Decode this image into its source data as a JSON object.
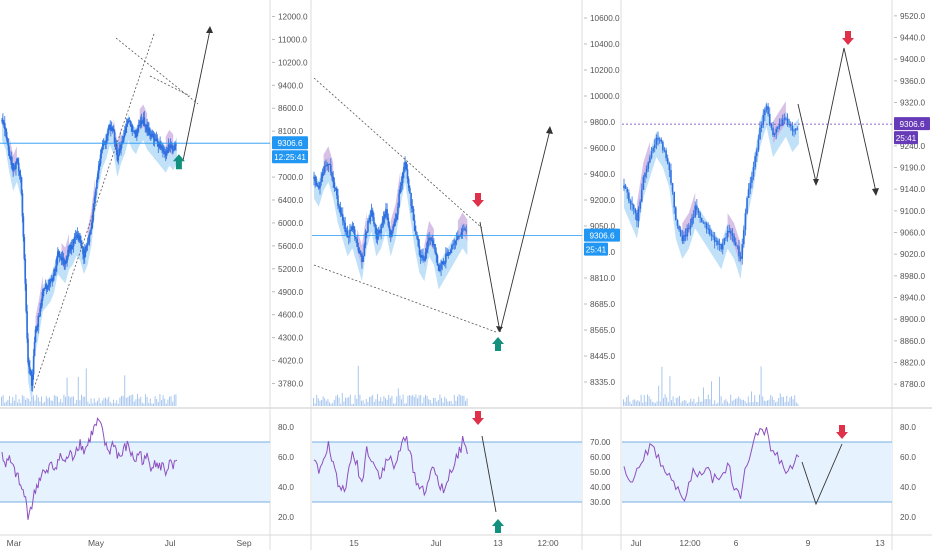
{
  "colors": {
    "candle": "#2e6fe0",
    "cloud_blue": "#8ec8f2",
    "cloud_purple": "#c7a6dd",
    "rsi_line": "#8e4fbf",
    "rsi_band": "#e6f2fd",
    "rsi_band_line": "#4a98d6",
    "price_line": "#2196f3",
    "arrow_down": "#e0314a",
    "arrow_up": "#14907e",
    "tag_blue": "#2196f3",
    "tag_purple": "#673ab7",
    "projection": "#333333",
    "volume": "#a9c7ef",
    "axis_text": "#555555"
  },
  "chart_data": [
    {
      "panel": "left",
      "type": "candlestick",
      "x_ticks": [
        "Mar",
        "May",
        "Jul",
        "Sep"
      ],
      "y_ticks": [
        "12000.0",
        "11000.0",
        "10200.0",
        "9400.0",
        "8600.0",
        "8100.0",
        "7600.0",
        "7000.0",
        "6400.0",
        "6000.0",
        "5600.0",
        "5200.0",
        "4900.0",
        "4600.0",
        "4300.0",
        "4020.0",
        "3780.0"
      ],
      "last_price_label": "9306.6",
      "countdown_label": "12:25:41",
      "closes": [
        9800,
        9600,
        9100,
        8700,
        8900,
        8600,
        6800,
        4600,
        4100,
        5200,
        5600,
        6100,
        6200,
        6300,
        6500,
        6900,
        6800,
        6700,
        7000,
        7100,
        7300,
        7200,
        6900,
        7100,
        7500,
        8200,
        8800,
        9200,
        9400,
        9700,
        9500,
        9000,
        9300,
        9500,
        9800,
        9600,
        9500,
        9700,
        9800,
        9600,
        9500,
        9400,
        9300,
        9200,
        9100,
        9250,
        9150,
        9306
      ],
      "rsi": [
        62,
        55,
        58,
        52,
        48,
        40,
        35,
        22,
        28,
        38,
        45,
        50,
        48,
        55,
        52,
        58,
        60,
        56,
        62,
        60,
        66,
        70,
        64,
        68,
        75,
        80,
        84,
        76,
        66,
        64,
        70,
        62,
        60,
        66,
        68,
        60,
        58,
        64,
        56,
        60,
        54,
        58,
        52,
        55,
        50,
        56,
        52,
        58
      ],
      "rsi_ticks": [
        "80.0",
        "60.0",
        "40.0",
        "20.0"
      ],
      "rsi_band": [
        70,
        30
      ],
      "annotations": [
        "support trendline",
        "falling wedge",
        "green up arrow",
        "projected breakout upward"
      ]
    },
    {
      "panel": "middle",
      "type": "candlestick",
      "x_ticks": [
        "15",
        "Jul",
        "13",
        "12:00"
      ],
      "y_ticks": [
        "10600.0",
        "10400.0",
        "10200.0",
        "10000.0",
        "9800.0",
        "9600.0",
        "9400.0",
        "9200.0",
        "9050.0",
        "8930.0",
        "8810.0",
        "8685.0",
        "8565.0",
        "8445.0",
        "8335.0"
      ],
      "last_price_label": "9306.6",
      "countdown_label": "25:41",
      "closes": [
        9650,
        9600,
        9700,
        9750,
        9650,
        9500,
        9400,
        9300,
        9350,
        9250,
        9150,
        9350,
        9450,
        9300,
        9350,
        9450,
        9300,
        9400,
        9600,
        9750,
        9550,
        9350,
        9200,
        9150,
        9300,
        9250,
        9100,
        9150,
        9200,
        9250,
        9300,
        9350,
        9306
      ],
      "rsi": [
        58,
        52,
        62,
        68,
        55,
        42,
        38,
        45,
        62,
        55,
        42,
        66,
        60,
        52,
        48,
        56,
        60,
        52,
        66,
        74,
        62,
        48,
        40,
        38,
        46,
        52,
        44,
        36,
        48,
        54,
        60,
        70,
        62
      ],
      "rsi_ticks": [
        "70.00",
        "60.00",
        "50.00",
        "40.00",
        "30.00"
      ],
      "rsi_band": [
        70,
        30
      ],
      "annotations": [
        "descending resistance",
        "descending support",
        "red down arrow",
        "green up arrow",
        "projected drop then rally"
      ]
    },
    {
      "panel": "right",
      "type": "candlestick",
      "x_ticks": [
        "Jul",
        "12:00",
        "6",
        "9",
        "13"
      ],
      "y_ticks": [
        "9520.0",
        "9440.0",
        "9400.0",
        "9360.0",
        "9320.0",
        "9280.0",
        "9240.0",
        "9190.0",
        "9140.0",
        "9100.0",
        "9060.0",
        "9020.0",
        "8980.0",
        "8940.0",
        "8900.0",
        "8860.0",
        "8820.0",
        "8780.0"
      ],
      "last_price_label": "9306.6",
      "countdown_label": "25:41",
      "closes": [
        9180,
        9150,
        9120,
        9200,
        9240,
        9280,
        9260,
        9220,
        9120,
        9080,
        9100,
        9140,
        9120,
        9100,
        9080,
        9060,
        9100,
        9080,
        9040,
        9160,
        9220,
        9300,
        9340,
        9280,
        9300,
        9320,
        9290,
        9306
      ],
      "rsi": [
        50,
        45,
        52,
        60,
        68,
        62,
        55,
        48,
        40,
        30,
        42,
        52,
        46,
        50,
        45,
        48,
        55,
        42,
        36,
        58,
        70,
        76,
        80,
        62,
        58,
        52,
        56,
        60
      ],
      "rsi_ticks": [
        "80.0",
        "60.0",
        "40.0",
        "20.0"
      ],
      "rsi_band": [
        70,
        30
      ],
      "annotations": [
        "red down arrow",
        "projected zigzag"
      ]
    }
  ]
}
